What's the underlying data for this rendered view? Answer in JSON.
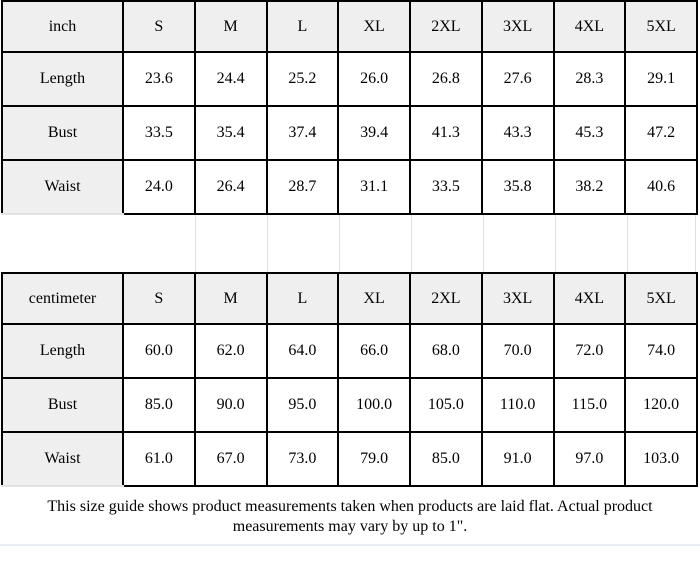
{
  "colors": {
    "background": "#ffffff",
    "text": "#000000",
    "border": "#000000",
    "header_fill": "#efefef",
    "label_fill": "#efefef",
    "faint_gridline": "#dbe2ee"
  },
  "size_columns": [
    "S",
    "M",
    "L",
    "XL",
    "2XL",
    "3XL",
    "4XL",
    "5XL"
  ],
  "tables": [
    {
      "unit_label": "inch",
      "measurement_rows": [
        {
          "label": "Length",
          "values": [
            "23.6",
            "24.4",
            "25.2",
            "26.0",
            "26.8",
            "27.6",
            "28.3",
            "29.1"
          ]
        },
        {
          "label": "Bust",
          "values": [
            "33.5",
            "35.4",
            "37.4",
            "39.4",
            "41.3",
            "43.3",
            "45.3",
            "47.2"
          ]
        },
        {
          "label": "Waist",
          "values": [
            "24.0",
            "26.4",
            "28.7",
            "31.1",
            "33.5",
            "35.8",
            "38.2",
            "40.6"
          ]
        }
      ]
    },
    {
      "unit_label": "centimeter",
      "measurement_rows": [
        {
          "label": "Length",
          "values": [
            "60.0",
            "62.0",
            "64.0",
            "66.0",
            "68.0",
            "70.0",
            "72.0",
            "74.0"
          ]
        },
        {
          "label": "Bust",
          "values": [
            "85.0",
            "90.0",
            "95.0",
            "100.0",
            "105.0",
            "110.0",
            "115.0",
            "120.0"
          ]
        },
        {
          "label": "Waist",
          "values": [
            "61.0",
            "67.0",
            "73.0",
            "79.0",
            "85.0",
            "91.0",
            "97.0",
            "103.0"
          ]
        }
      ]
    }
  ],
  "footer": {
    "note": "This size guide shows product measurements taken when products are laid flat. Actual product measurements may vary by up to 1\"."
  }
}
